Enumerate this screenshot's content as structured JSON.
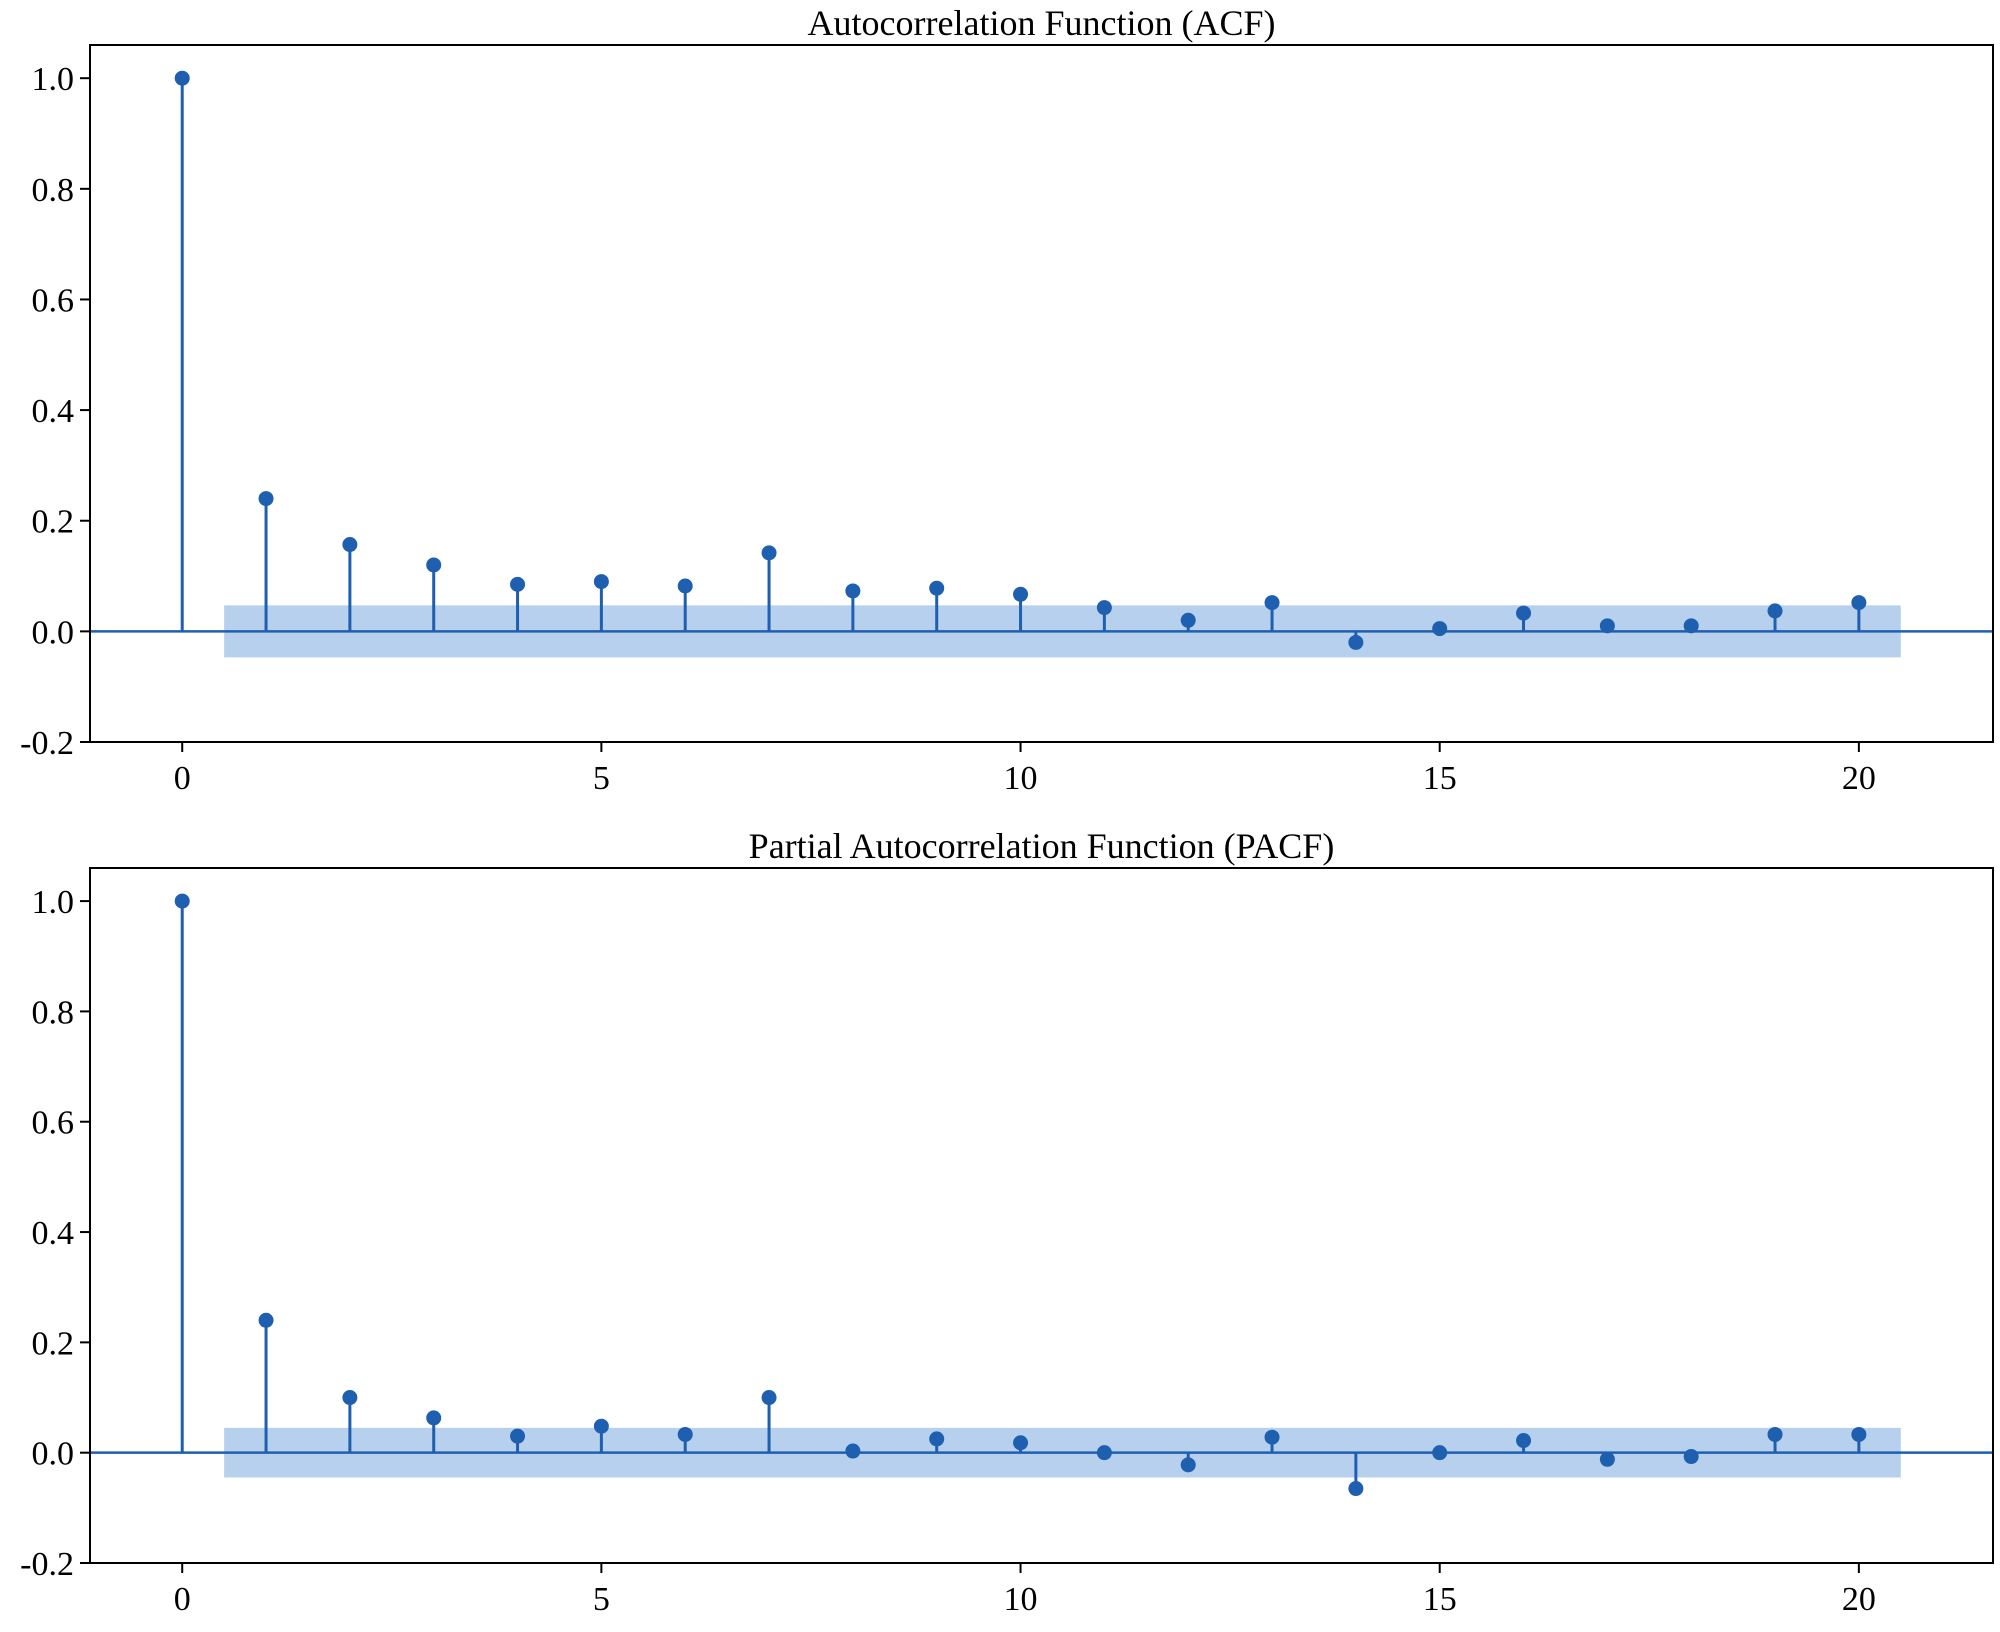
{
  "chart_data": [
    {
      "type": "stem",
      "title": "Autocorrelation Function (ACF)",
      "xlabel": "",
      "ylabel": "",
      "xlim": [
        -1.1,
        21.6
      ],
      "ylim": [
        -0.2,
        1.06
      ],
      "xticks": [
        0,
        5,
        10,
        15,
        20
      ],
      "xtick_labels": [
        "0",
        "5",
        "10",
        "15",
        "20"
      ],
      "yticks": [
        -0.2,
        0.0,
        0.2,
        0.4,
        0.6,
        0.8,
        1.0
      ],
      "ytick_labels": [
        "-0.2",
        "0.0",
        "0.2",
        "0.4",
        "0.6",
        "0.8",
        "1.0"
      ],
      "lags": [
        0,
        1,
        2,
        3,
        4,
        5,
        6,
        7,
        8,
        9,
        10,
        11,
        12,
        13,
        14,
        15,
        16,
        17,
        18,
        19,
        20
      ],
      "values": [
        1.0,
        0.24,
        0.157,
        0.12,
        0.085,
        0.09,
        0.082,
        0.142,
        0.073,
        0.078,
        0.067,
        0.043,
        0.02,
        0.052,
        -0.02,
        0.005,
        0.033,
        0.01,
        0.01,
        0.037,
        0.052
      ],
      "confidence_band": {
        "lag_start": 0.5,
        "lag_end": 20.5,
        "upper": 0.047,
        "lower": -0.047
      },
      "grid": false
    },
    {
      "type": "stem",
      "title": "Partial Autocorrelation Function (PACF)",
      "xlabel": "",
      "ylabel": "",
      "xlim": [
        -1.1,
        21.6
      ],
      "ylim": [
        -0.2,
        1.06
      ],
      "xticks": [
        0,
        5,
        10,
        15,
        20
      ],
      "xtick_labels": [
        "0",
        "5",
        "10",
        "15",
        "20"
      ],
      "yticks": [
        -0.2,
        0.0,
        0.2,
        0.4,
        0.6,
        0.8,
        1.0
      ],
      "ytick_labels": [
        "-0.2",
        "0.0",
        "0.2",
        "0.4",
        "0.6",
        "0.8",
        "1.0"
      ],
      "lags": [
        0,
        1,
        2,
        3,
        4,
        5,
        6,
        7,
        8,
        9,
        10,
        11,
        12,
        13,
        14,
        15,
        16,
        17,
        18,
        19,
        20
      ],
      "values": [
        1.0,
        0.24,
        0.1,
        0.063,
        0.03,
        0.048,
        0.033,
        0.1,
        0.003,
        0.025,
        0.018,
        0.0,
        -0.022,
        0.028,
        -0.065,
        0.0,
        0.022,
        -0.012,
        -0.007,
        0.033,
        0.033
      ],
      "confidence_band": {
        "lag_start": 0.5,
        "lag_end": 20.5,
        "upper": 0.045,
        "lower": -0.045
      },
      "grid": false
    }
  ],
  "colors": {
    "stem": "#1f5fb0",
    "band": "#a9c8ea",
    "axis": "#000000"
  }
}
